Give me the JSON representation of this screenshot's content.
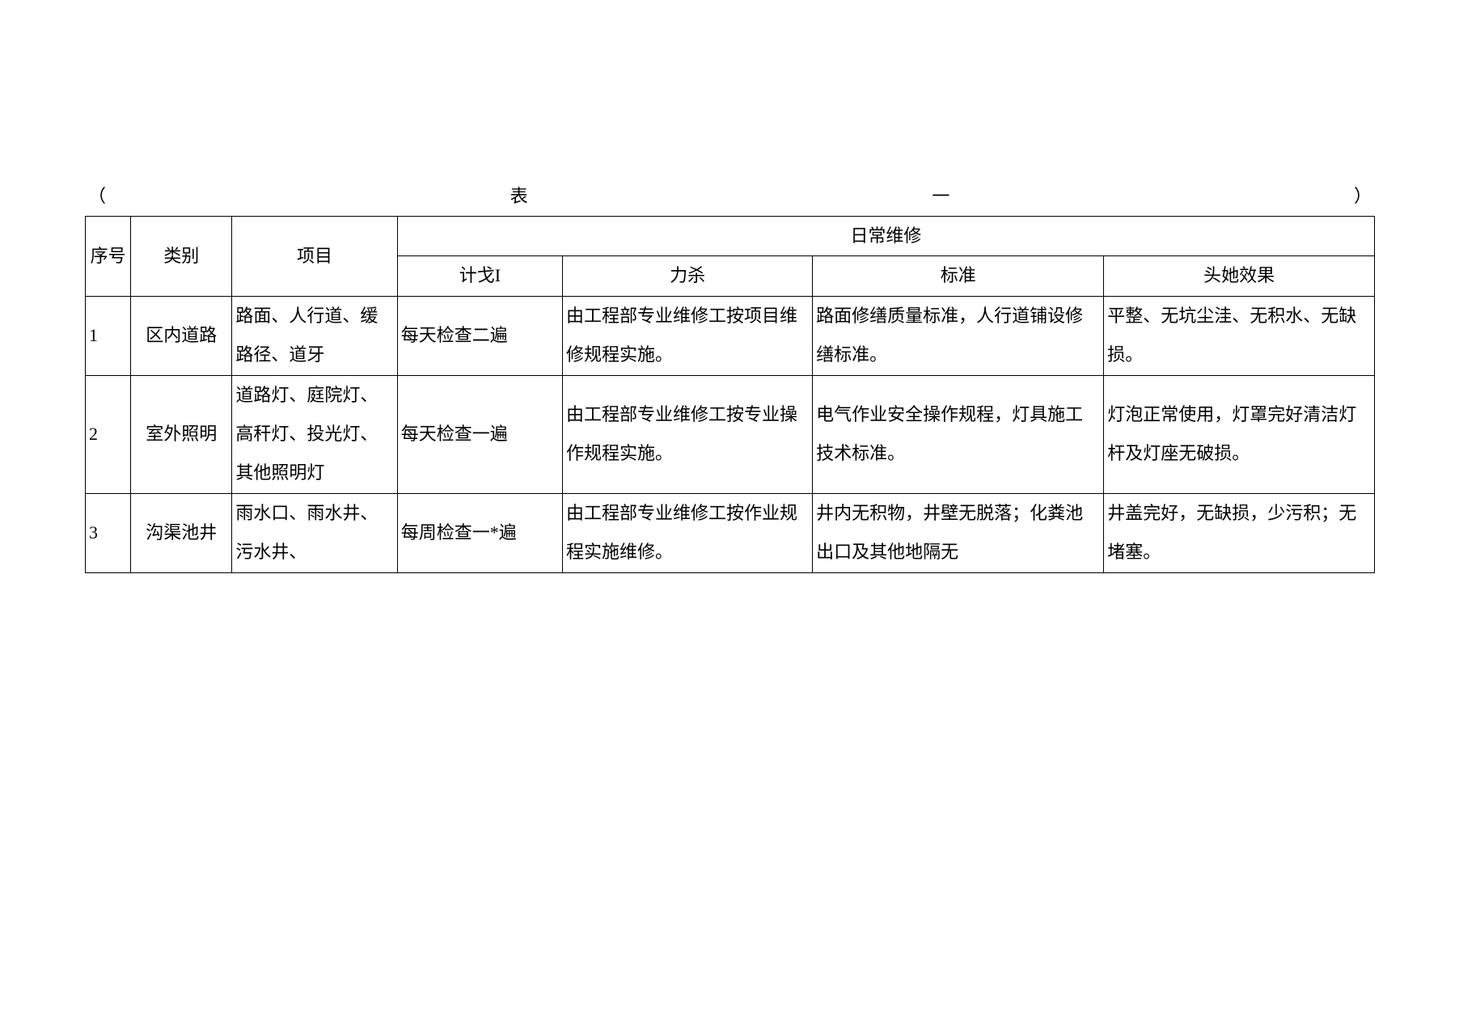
{
  "caption": {
    "left": "（",
    "mid": "表",
    "dash": "一",
    "right": "）"
  },
  "header": {
    "seq": "序号",
    "cat": "类别",
    "item": "项目",
    "group": "日常维修",
    "plan": "计戈I",
    "method": "力杀",
    "standard": "标准",
    "effect": "头她效果"
  },
  "rows": [
    {
      "seq": "1",
      "cat": "区内道路",
      "item": "路面、人行道、缓路径、道牙",
      "plan": "每天检查二遍",
      "method": "由工程部专业维修工按项目维修规程实施。",
      "standard": "路面修缮质量标准，人行道铺设修缮标准。",
      "effect": "平整、无坑尘洼、无积水、无缺损。"
    },
    {
      "seq": "2",
      "cat": "室外照明",
      "item": "道路灯、庭院灯、高秆灯、投光灯、其他照明灯",
      "plan": "每天检查一遍",
      "method": "由工程部专业维修工按专业操作规程实施。",
      "standard": "电气作业安全操作规程，灯具施工技术标准。",
      "effect": "灯泡正常使用，灯罩完好清洁灯杆及灯座无破损。"
    },
    {
      "seq": "3",
      "cat": "沟渠池井",
      "item": "雨水口、雨水井、污水井、",
      "plan": "每周检查一*遍",
      "method": "由工程部专业维修工按作业规程实施维修。",
      "standard": "井内无积物，井壁无脱落；化粪池出口及其他地隔无",
      "effect": "井盖完好，无缺损，少污积；无堵塞。"
    }
  ],
  "style": {
    "font_family": "SimSun",
    "font_size_pt": 16,
    "border_color": "#000000",
    "background_color": "#ffffff",
    "text_color": "#000000",
    "line_height": 2.2
  }
}
